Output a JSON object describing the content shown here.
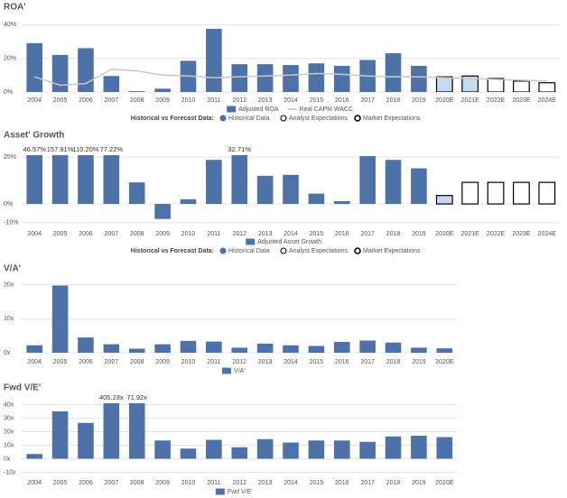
{
  "chart_data": [
    {
      "type": "bar",
      "title": "ROA'",
      "categories": [
        "2004",
        "2005",
        "2006",
        "2007",
        "2008",
        "2009",
        "2010",
        "2011",
        "2012",
        "2013",
        "2014",
        "2015",
        "2016",
        "2017",
        "2018",
        "2019",
        "2020E",
        "2021E",
        "2022E",
        "2023E",
        "2024E"
      ],
      "series": [
        {
          "name": "Adjusted ROA",
          "type": "bar",
          "color": "#4e71a8",
          "colors": [
            "#4e71a8",
            "#4e71a8",
            "#4e71a8",
            "#4e71a8",
            "#4e71a8",
            "#4e71a8",
            "#4e71a8",
            "#4e71a8",
            "#4e71a8",
            "#4e71a8",
            "#4e71a8",
            "#4e71a8",
            "#4e71a8",
            "#4e71a8",
            "#4e71a8",
            "#4e71a8",
            "#c5d9f1",
            "#c5d9f1",
            "#ffffff",
            "#ffffff",
            "#ffffff"
          ],
          "edgecolors": [
            "#4e71a8",
            "#4e71a8",
            "#4e71a8",
            "#4e71a8",
            "#4e71a8",
            "#4e71a8",
            "#4e71a8",
            "#4e71a8",
            "#4e71a8",
            "#4e71a8",
            "#4e71a8",
            "#4e71a8",
            "#4e71a8",
            "#4e71a8",
            "#4e71a8",
            "#4e71a8",
            "#000000",
            "#000000",
            "#000000",
            "#000000",
            "#000000"
          ],
          "values": [
            29,
            22,
            26,
            9.5,
            0.5,
            2,
            18.5,
            37.5,
            16.5,
            16.5,
            16,
            17,
            15.5,
            19,
            23,
            15.5,
            9,
            9.5,
            8,
            6.5,
            5.5
          ]
        },
        {
          "name": "Real CAPM WACC",
          "type": "line",
          "color": "#c8c8c8",
          "values": [
            9,
            4,
            5,
            13.5,
            12.5,
            10,
            9.5,
            8.5,
            9,
            9.5,
            10,
            11,
            10.5,
            9.5,
            9,
            9,
            8.5,
            8,
            7.5,
            7,
            6.5
          ]
        }
      ],
      "ylim": [
        0,
        42
      ],
      "yticks": [
        {
          "value": 0,
          "label": "0%"
        },
        {
          "value": 20,
          "label": "20%"
        },
        {
          "value": 40,
          "label": "40%"
        }
      ],
      "grid": true,
      "forecast_legend": {
        "title": "Historical vs Forecast Data:",
        "items": [
          {
            "name": "Historical Data",
            "color": "#4e71a8",
            "edgecolor": "#4e71a8"
          },
          {
            "name": "Analyst Expectations",
            "color": "#ffffff",
            "edgecolor": "#000000"
          },
          {
            "name": "Market Expectations",
            "color": "#ffffff",
            "edgecolor": "#000000"
          }
        ]
      }
    },
    {
      "type": "bar",
      "title": "Asset' Growth",
      "categories": [
        "2004",
        "2005",
        "2006",
        "2007",
        "2008",
        "2009",
        "2010",
        "2011",
        "2012",
        "2013",
        "2014",
        "2015",
        "2016",
        "2017",
        "2018",
        "2019",
        "2020E",
        "2021E",
        "2022E",
        "2023E",
        "2024E"
      ],
      "series": [
        {
          "name": "Adjusted Asset Growth",
          "type": "bar",
          "color": "#4e71a8",
          "colors": [
            "#4e71a8",
            "#4e71a8",
            "#4e71a8",
            "#4e71a8",
            "#4e71a8",
            "#4e71a8",
            "#4e71a8",
            "#4e71a8",
            "#4e71a8",
            "#4e71a8",
            "#4e71a8",
            "#4e71a8",
            "#4e71a8",
            "#4e71a8",
            "#4e71a8",
            "#4e71a8",
            "#c5d9f1",
            "#ffffff",
            "#ffffff",
            "#ffffff",
            "#ffffff"
          ],
          "edgecolors": [
            "#4e71a8",
            "#4e71a8",
            "#4e71a8",
            "#4e71a8",
            "#4e71a8",
            "#4e71a8",
            "#4e71a8",
            "#4e71a8",
            "#4e71a8",
            "#4e71a8",
            "#4e71a8",
            "#4e71a8",
            "#4e71a8",
            "#4e71a8",
            "#4e71a8",
            "#4e71a8",
            "#000000",
            "#000000",
            "#000000",
            "#000000",
            "#000000"
          ],
          "values": [
            46.57,
            157.91,
            110.2,
            77.22,
            11.5,
            -8,
            2.5,
            23.5,
            32.71,
            15,
            15.5,
            5.5,
            1.5,
            25.5,
            23.5,
            19,
            4.5,
            11.5,
            11.5,
            11.5,
            11.5
          ],
          "value_labels": [
            "46.57%",
            "157.91%",
            "110.20%",
            "77.22%",
            null,
            null,
            null,
            null,
            "32.71%",
            null,
            null,
            null,
            null,
            null,
            null,
            null,
            null,
            null,
            null,
            null,
            null
          ]
        }
      ],
      "ylim": [
        -12,
        26
      ],
      "yticks": [
        {
          "value": -10,
          "label": "-10%"
        },
        {
          "value": 0,
          "label": "0%"
        },
        {
          "value": 25,
          "label": "25%"
        }
      ],
      "grid": true,
      "forecast_legend": {
        "title": "Historical vs Forecast Data:",
        "items": [
          {
            "name": "Historical Data",
            "color": "#4e71a8",
            "edgecolor": "#4e71a8"
          },
          {
            "name": "Analyst Expectations",
            "color": "#ffffff",
            "edgecolor": "#000000"
          },
          {
            "name": "Market Expectations",
            "color": "#ffffff",
            "edgecolor": "#000000"
          }
        ]
      }
    },
    {
      "type": "bar",
      "title": "V/A'",
      "categories": [
        "2004",
        "2005",
        "2006",
        "2007",
        "2008",
        "2009",
        "2010",
        "2011",
        "2012",
        "2013",
        "2014",
        "2015",
        "2016",
        "2017",
        "2018",
        "2019",
        "2020E"
      ],
      "series": [
        {
          "name": "V/A'",
          "type": "bar",
          "color": "#4e71a8",
          "values": [
            2.2,
            19.8,
            4.5,
            2.5,
            1.2,
            2.5,
            3.5,
            3.3,
            1.5,
            2.7,
            2.2,
            2.0,
            3.2,
            3.6,
            3.0,
            1.5,
            1.3
          ]
        }
      ],
      "ylim": [
        0,
        21
      ],
      "yticks": [
        {
          "value": 0,
          "label": "0x"
        },
        {
          "value": 10,
          "label": "10x"
        },
        {
          "value": 20,
          "label": "20x"
        }
      ],
      "grid": true
    },
    {
      "type": "bar",
      "title": "Fwd V/E'",
      "categories": [
        "2004",
        "2005",
        "2006",
        "2007",
        "2008",
        "2009",
        "2010",
        "2011",
        "2012",
        "2013",
        "2014",
        "2015",
        "2016",
        "2017",
        "2018",
        "2019",
        "2020E"
      ],
      "series": [
        {
          "name": "Fwd V/E'",
          "type": "bar",
          "color": "#4e71a8",
          "values": [
            3.5,
            35,
            26.5,
            405.23,
            71.92,
            13.5,
            7.5,
            14,
            8.5,
            14.5,
            12,
            13.5,
            13.5,
            12.5,
            16.5,
            17,
            16
          ],
          "value_labels": [
            null,
            null,
            null,
            "405.23x",
            "71.92x",
            null,
            null,
            null,
            null,
            null,
            null,
            null,
            null,
            null,
            null,
            null,
            null
          ]
        }
      ],
      "ylim": [
        -11,
        41
      ],
      "yticks": [
        {
          "value": -10,
          "label": "-10x"
        },
        {
          "value": 0,
          "label": "0x"
        },
        {
          "value": 10,
          "label": "10x"
        },
        {
          "value": 20,
          "label": "20x"
        },
        {
          "value": 30,
          "label": "30x"
        },
        {
          "value": 40,
          "label": "40x"
        }
      ],
      "grid": true
    }
  ]
}
